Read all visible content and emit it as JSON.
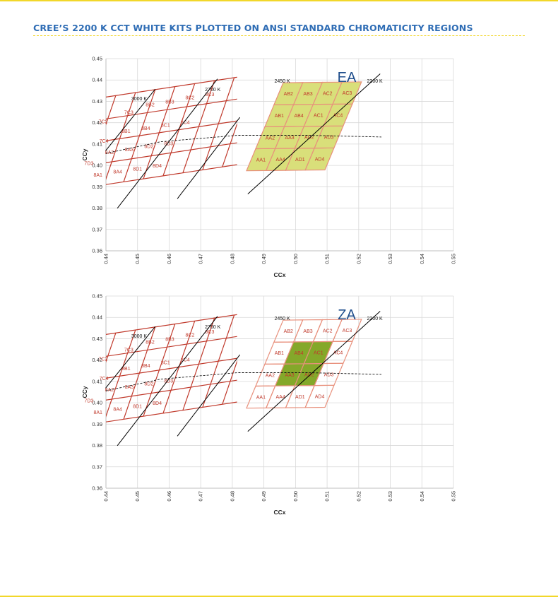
{
  "page": {
    "title": "CREE’S 2200 K CCT WHITE KITS PLOTTED ON ANSI STANDARD CHROMATICITY REGIONS"
  },
  "colors": {
    "title": "#2f6db5",
    "rule": "#f2d72a",
    "kit_label": "#1f4e8c",
    "ansi_outline": "#c0392b",
    "bin_label": "#c0392b",
    "kit_outline": "#e8907c",
    "ea_fill": "#d9df7a",
    "za_fill": "#84a82a",
    "grid": "#d8d8d8",
    "cct_line": "#000000"
  },
  "chart_data": [
    {
      "type": "scatter",
      "kit_label": "EA",
      "xlabel": "CCx",
      "ylabel": "CCy",
      "xlim": [
        0.44,
        0.55
      ],
      "ylim": [
        0.36,
        0.45
      ],
      "xticks": [
        "0.44",
        "0.45",
        "0.46",
        "0.47",
        "0.48",
        "0.49",
        "0.50",
        "0.51",
        "0.52",
        "0.53",
        "0.54",
        "0.55"
      ],
      "yticks": [
        "0.45",
        "0.44",
        "0.43",
        "0.42",
        "0.41",
        "0.40",
        "0.39",
        "0.38",
        "0.37",
        "0.36"
      ],
      "grid": true,
      "ansi_grid": {
        "x0": 0.4331,
        "y0": 0.3895,
        "dx_col": 0.00625,
        "dy_col": 0.0014,
        "dx_row": 0.0025,
        "dy_row": 0.0108,
        "cols": 4,
        "rows": 4,
        "start_col": 0,
        "end_col": 8,
        "clip_xmin": 0.44,
        "clip_xmax": 0.4815
      },
      "ansi_bins": [
        [
          "8A1",
          "8A4",
          "8D1",
          "8D4"
        ],
        [
          "8A2",
          "8A3",
          "8D2",
          "8D3"
        ],
        [
          "8B1",
          "8B4",
          "8C1",
          "8C4"
        ],
        [
          "8B2",
          "8B3",
          "8C2",
          "8C3"
        ],
        [
          "7D3",
          "7C4",
          "7C3",
          "7C2"
        ]
      ],
      "ansi_label_cells": [
        {
          "text": "8A1",
          "col": 0.5,
          "row": 0.5
        },
        {
          "text": "8A4",
          "col": 1.5,
          "row": 0.5
        },
        {
          "text": "8D1",
          "col": 2.5,
          "row": 0.5
        },
        {
          "text": "8D4",
          "col": 3.5,
          "row": 0.5
        },
        {
          "text": "7D3",
          "col": -0.2,
          "row": 1.1
        },
        {
          "text": "8A2",
          "col": 0.7,
          "row": 1.45
        },
        {
          "text": "8A3",
          "col": 1.7,
          "row": 1.45
        },
        {
          "text": "8D2",
          "col": 2.7,
          "row": 1.45
        },
        {
          "text": "8D3",
          "col": 3.7,
          "row": 1.45
        },
        {
          "text": "7C4",
          "col": 0.2,
          "row": 2.0
        },
        {
          "text": "8B1",
          "col": 1.2,
          "row": 2.3
        },
        {
          "text": "8B4",
          "col": 2.2,
          "row": 2.3
        },
        {
          "text": "8C1",
          "col": 3.2,
          "row": 2.3
        },
        {
          "text": "8C4",
          "col": 4.2,
          "row": 2.3
        },
        {
          "text": "7C2",
          "col": -0.2,
          "row": 2.9
        },
        {
          "text": "7C3",
          "col": 1.0,
          "row": 3.15
        },
        {
          "text": "8B2",
          "col": 2.0,
          "row": 3.35
        },
        {
          "text": "8B3",
          "col": 3.0,
          "row": 3.35
        },
        {
          "text": "8C2",
          "col": 4.0,
          "row": 3.4
        },
        {
          "text": "8C3",
          "col": 5.0,
          "row": 3.4
        }
      ],
      "kit_grid": {
        "x0": 0.4845,
        "y0": 0.3975,
        "dx_col": 0.0062,
        "dy_col": 0.0001,
        "dx_row": 0.0029,
        "dy_row": 0.0103,
        "cols": 4,
        "rows": 4
      },
      "kit_bins": [
        [
          "AA1",
          "AA4",
          "AD1",
          "AD4"
        ],
        [
          "AA2",
          "AA3",
          "AD2",
          "AD3"
        ],
        [
          "AB1",
          "AB4",
          "AC1",
          "AC4"
        ],
        [
          "AB2",
          "AB3",
          "AC2",
          "AC3"
        ]
      ],
      "highlight": "all",
      "cct_lines": [
        {
          "label": "3000 K",
          "x": [
            0.4399,
            0.4556
          ],
          "y": [
            0.4069,
            0.4357
          ],
          "label_at": [
            0.4505,
            0.4304
          ]
        },
        {
          "label": "2700 K",
          "x": [
            0.4436,
            0.4753
          ],
          "y": [
            0.3799,
            0.4405
          ],
          "label_at": [
            0.4738,
            0.4348
          ]
        },
        {
          "label": "2450 K",
          "x": [
            0.4626,
            0.4824
          ],
          "y": [
            0.3844,
            0.4225
          ],
          "label_at": [
            0.4958,
            0.4387
          ]
        },
        {
          "label": "2200 K",
          "x": [
            0.4849,
            0.5268
          ],
          "y": [
            0.3866,
            0.4429
          ],
          "label_at": [
            0.5251,
            0.4387
          ]
        }
      ],
      "planckian_locus": {
        "x": [
          0.4399,
          0.4573,
          0.4816,
          0.5038,
          0.5272
        ],
        "y": [
          0.4056,
          0.4111,
          0.4141,
          0.4141,
          0.4133
        ]
      }
    },
    {
      "type": "scatter",
      "kit_label": "ZA",
      "xlabel": "CCx",
      "ylabel": "CCy",
      "xlim": [
        0.44,
        0.55
      ],
      "ylim": [
        0.36,
        0.45
      ],
      "xticks": [
        "0.44",
        "0.45",
        "0.46",
        "0.47",
        "0.48",
        "0.49",
        "0.50",
        "0.51",
        "0.52",
        "0.53",
        "0.54",
        "0.55"
      ],
      "yticks": [
        "0.45",
        "0.44",
        "0.43",
        "0.42",
        "0.41",
        "0.40",
        "0.39",
        "0.38",
        "0.37",
        "0.36"
      ],
      "grid": true,
      "ansi_grid": {
        "x0": 0.4331,
        "y0": 0.3895,
        "dx_col": 0.00625,
        "dy_col": 0.0014,
        "dx_row": 0.0025,
        "dy_row": 0.0108,
        "cols": 4,
        "rows": 4,
        "start_col": 0,
        "end_col": 8,
        "clip_xmin": 0.44,
        "clip_xmax": 0.4815
      },
      "ansi_bins": [
        [
          "8A1",
          "8A4",
          "8D1",
          "8D4"
        ],
        [
          "8A2",
          "8A3",
          "8D2",
          "8D3"
        ],
        [
          "8B1",
          "8B4",
          "8C1",
          "8C4"
        ],
        [
          "8B2",
          "8B3",
          "8C2",
          "8C3"
        ],
        [
          "7D3",
          "7C4",
          "7C3",
          "7C2"
        ]
      ],
      "ansi_label_cells": [
        {
          "text": "8A1",
          "col": 0.5,
          "row": 0.5
        },
        {
          "text": "8A4",
          "col": 1.5,
          "row": 0.5
        },
        {
          "text": "8D1",
          "col": 2.5,
          "row": 0.5
        },
        {
          "text": "8D4",
          "col": 3.5,
          "row": 0.5
        },
        {
          "text": "7D3",
          "col": -0.2,
          "row": 1.1
        },
        {
          "text": "8A2",
          "col": 0.7,
          "row": 1.45
        },
        {
          "text": "8A3",
          "col": 1.7,
          "row": 1.45
        },
        {
          "text": "8D2",
          "col": 2.7,
          "row": 1.45
        },
        {
          "text": "8D3",
          "col": 3.7,
          "row": 1.45
        },
        {
          "text": "7C4",
          "col": 0.2,
          "row": 2.0
        },
        {
          "text": "8B1",
          "col": 1.2,
          "row": 2.3
        },
        {
          "text": "8B4",
          "col": 2.2,
          "row": 2.3
        },
        {
          "text": "8C1",
          "col": 3.2,
          "row": 2.3
        },
        {
          "text": "8C4",
          "col": 4.2,
          "row": 2.3
        },
        {
          "text": "7C2",
          "col": -0.2,
          "row": 2.9
        },
        {
          "text": "7C3",
          "col": 1.0,
          "row": 3.15
        },
        {
          "text": "8B2",
          "col": 2.0,
          "row": 3.35
        },
        {
          "text": "8B3",
          "col": 3.0,
          "row": 3.35
        },
        {
          "text": "8C2",
          "col": 4.0,
          "row": 3.4
        },
        {
          "text": "8C3",
          "col": 5.0,
          "row": 3.4
        }
      ],
      "kit_grid": {
        "x0": 0.4845,
        "y0": 0.3975,
        "dx_col": 0.0062,
        "dy_col": 0.0001,
        "dx_row": 0.0029,
        "dy_row": 0.0103,
        "cols": 4,
        "rows": 4
      },
      "kit_bins": [
        [
          "AA1",
          "AA4",
          "AD1",
          "AD4"
        ],
        [
          "AA2",
          "AA3",
          "AD2",
          "AD3"
        ],
        [
          "AB1",
          "AB4",
          "AC1",
          "AC4"
        ],
        [
          "AB2",
          "AB3",
          "AC2",
          "AC3"
        ]
      ],
      "highlight": [
        "AA3",
        "AD2",
        "AB4",
        "AC1"
      ],
      "cct_lines": [
        {
          "label": "3000 K",
          "x": [
            0.4399,
            0.4556
          ],
          "y": [
            0.4069,
            0.4357
          ],
          "label_at": [
            0.4505,
            0.4304
          ]
        },
        {
          "label": "2700 K",
          "x": [
            0.4436,
            0.4753
          ],
          "y": [
            0.3799,
            0.4405
          ],
          "label_at": [
            0.4738,
            0.4348
          ]
        },
        {
          "label": "2450 K",
          "x": [
            0.4626,
            0.4824
          ],
          "y": [
            0.3844,
            0.4225
          ],
          "label_at": [
            0.4958,
            0.4387
          ]
        },
        {
          "label": "2200 K",
          "x": [
            0.4849,
            0.5268
          ],
          "y": [
            0.3866,
            0.4429
          ],
          "label_at": [
            0.5251,
            0.4387
          ]
        }
      ],
      "planckian_locus": {
        "x": [
          0.4399,
          0.4573,
          0.4816,
          0.5038,
          0.5272
        ],
        "y": [
          0.4056,
          0.4111,
          0.4141,
          0.4141,
          0.4133
        ]
      }
    }
  ]
}
